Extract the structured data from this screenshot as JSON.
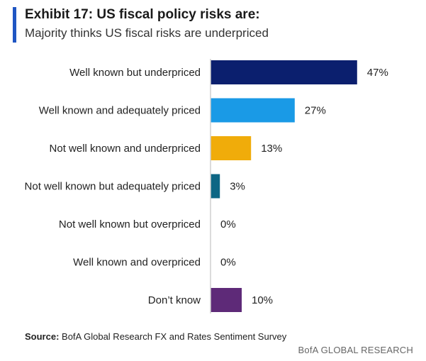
{
  "header": {
    "title": "Exhibit 17: US fiscal policy risks are:",
    "subtitle": "Majority thinks US fiscal risks are underpriced"
  },
  "footer": {
    "source_label": "Source:",
    "source_text": "BofA Global Research FX and Rates Sentiment Survey",
    "brand": "BofA GLOBAL RESEARCH"
  },
  "colors": {
    "navy": "#0b1f6e",
    "light_blue": "#1a9ae6",
    "gold": "#f0ac0a",
    "teal": "#0d6684",
    "purple": "#5e2a78",
    "accent": "#1f56c3"
  },
  "chart_data": {
    "type": "bar",
    "orientation": "horizontal",
    "title": "",
    "xlabel": "",
    "ylabel": "",
    "categories": [
      "Well known but underpriced",
      "Well known and adequately priced",
      "Not well known and underpriced",
      "Not well known but adequately priced",
      "Not well known but overpriced",
      "Well known and overpriced",
      "Don’t know"
    ],
    "values": [
      47,
      27,
      13,
      3,
      0,
      0,
      10
    ],
    "value_labels": [
      "47%",
      "27%",
      "13%",
      "3%",
      "0%",
      "0%",
      "10%"
    ],
    "bar_colors": [
      "#0b1f6e",
      "#1a9ae6",
      "#f0ac0a",
      "#0d6684",
      "#0d6684",
      "#0d6684",
      "#5e2a78"
    ],
    "xlim": [
      0,
      50
    ],
    "grid": false,
    "legend": "none"
  }
}
